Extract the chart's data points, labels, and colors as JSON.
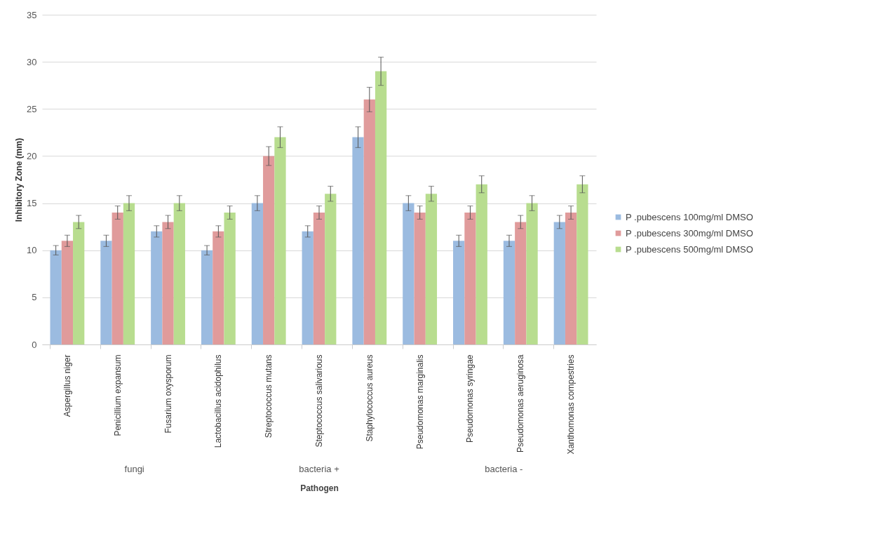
{
  "chart_data": {
    "type": "bar",
    "xlabel": "Pathogen",
    "ylabel": "Inhibitory Zone (mm)",
    "categories": [
      "Aspergillus niger",
      "Penicillium expansum",
      "Fusarium oxysporum",
      "Lactobacillus  acidophilus",
      "Streptococcus  mutans",
      "Steptococcus salivarious",
      "Staphylococcus  aureus",
      "Pseudomonas marginalis",
      "Pseudomonas syringae",
      "Pseudomonas  aeruginosa",
      "Xanthomonas  compestries"
    ],
    "series": [
      {
        "name": "P .pubescens 100mg/ml DMSO",
        "color": "#9bbbe0",
        "values": [
          10,
          11,
          12,
          10,
          15,
          12,
          22,
          15,
          11,
          11,
          13
        ],
        "errors": [
          0.5,
          0.6,
          0.6,
          0.5,
          0.8,
          0.6,
          1.1,
          0.8,
          0.6,
          0.6,
          0.7
        ]
      },
      {
        "name": "P .pubescens 300mg/ml DMSO",
        "color": "#e09b9b",
        "values": [
          11,
          14,
          13,
          12,
          20,
          14,
          26,
          14,
          14,
          13,
          14
        ],
        "errors": [
          0.6,
          0.7,
          0.7,
          0.6,
          1.0,
          0.7,
          1.3,
          0.7,
          0.7,
          0.7,
          0.7
        ]
      },
      {
        "name": "P .pubescens 500mg/ml DMSO",
        "color": "#b8dd8f",
        "values": [
          13,
          15,
          15,
          14,
          22,
          16,
          29,
          16,
          17,
          15,
          17
        ],
        "errors": [
          0.7,
          0.8,
          0.8,
          0.7,
          1.1,
          0.8,
          1.5,
          0.8,
          0.9,
          0.8,
          0.9
        ]
      }
    ],
    "ylim": [
      0,
      35
    ],
    "yticks": [
      0,
      5,
      10,
      15,
      20,
      25,
      30,
      35
    ],
    "grid": "y",
    "legend": "right",
    "annotations": [
      "fungi",
      "bacteria +",
      "bacteria -"
    ]
  }
}
